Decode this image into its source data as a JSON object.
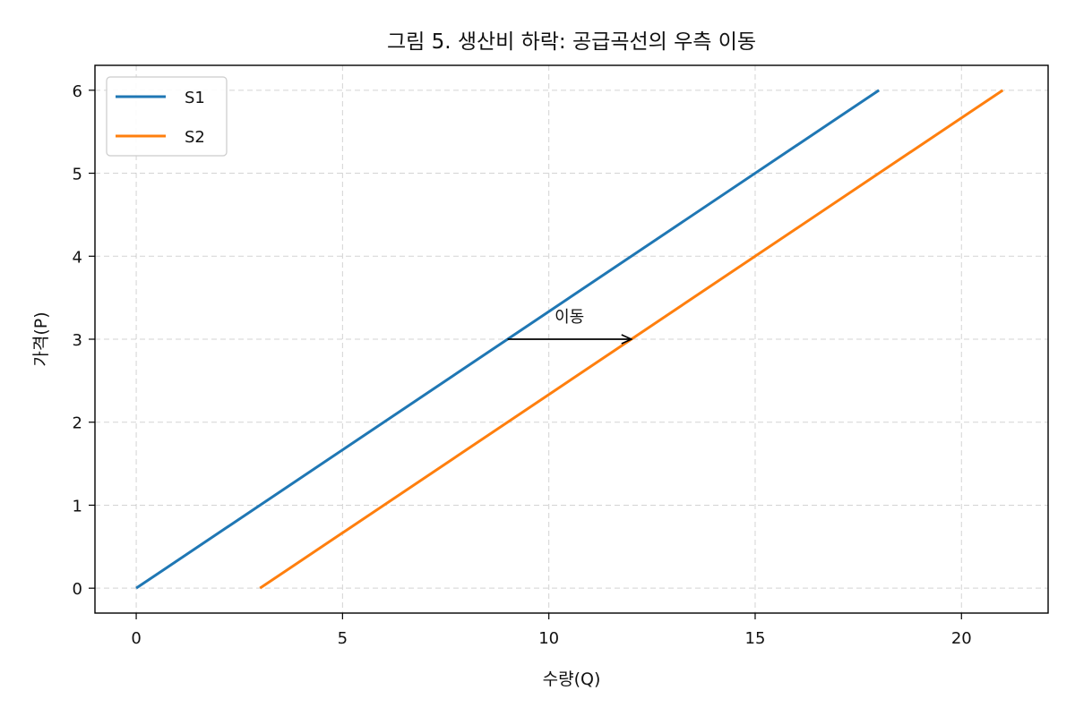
{
  "chart_data": {
    "type": "line",
    "title": "그림 5. 생산비 하락: 공급곡선의 우측 이동",
    "xlabel": "수량(Q)",
    "ylabel": "가격(P)",
    "xlim": [
      -1,
      22.1
    ],
    "ylim": [
      -0.3,
      6.3
    ],
    "xticks": [
      0,
      5,
      10,
      15,
      20
    ],
    "yticks": [
      0,
      1,
      2,
      3,
      4,
      5,
      6
    ],
    "grid": true,
    "legend": "top-left",
    "series": [
      {
        "name": "S1",
        "color": "#1f77b4",
        "x": [
          0,
          18
        ],
        "y": [
          0,
          6
        ]
      },
      {
        "name": "S2",
        "color": "#ff7f0e",
        "x": [
          3,
          21
        ],
        "y": [
          0,
          6
        ]
      }
    ],
    "annotations": [
      {
        "text": "이동",
        "arrow_from": [
          9,
          3
        ],
        "arrow_to": [
          12,
          3
        ]
      }
    ]
  }
}
